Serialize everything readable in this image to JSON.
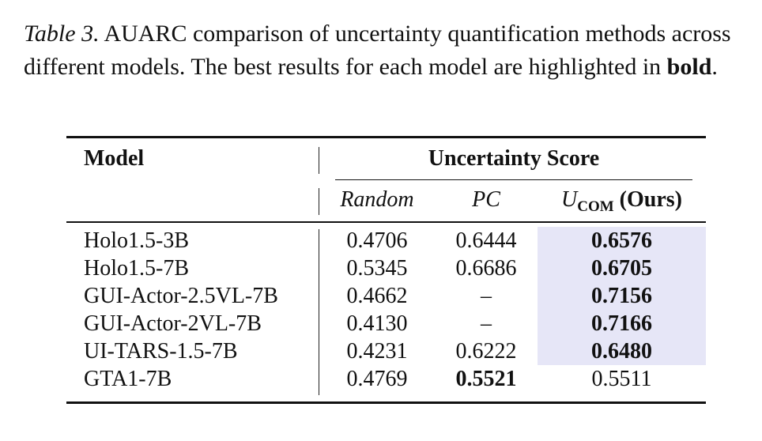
{
  "caption": {
    "label": "Table 3.",
    "text_before_bold": " AUARC comparison of uncertainty quantification methods across different models. The best results for each model are highlighted in ",
    "bold_word": "bold",
    "text_after_bold": "."
  },
  "table": {
    "model_header": "Model",
    "group_header": "Uncertainty Score",
    "columns": {
      "random": "Random",
      "pc": "PC",
      "ucom_letter": "U",
      "ucom_sub": "COM",
      "ucom_suffix": " (Ours)"
    },
    "rows": [
      {
        "model": "Holo1.5-3B",
        "random": "0.4706",
        "pc": "0.6444",
        "ucom": "0.6576"
      },
      {
        "model": "Holo1.5-7B",
        "random": "0.5345",
        "pc": "0.6686",
        "ucom": "0.6705"
      },
      {
        "model": "GUI-Actor-2.5VL-7B",
        "random": "0.4662",
        "pc": "–",
        "ucom": "0.7156"
      },
      {
        "model": "GUI-Actor-2VL-7B",
        "random": "0.4130",
        "pc": "–",
        "ucom": "0.7166"
      },
      {
        "model": "UI-TARS-1.5-7B",
        "random": "0.4231",
        "pc": "0.6222",
        "ucom": "0.6480"
      },
      {
        "model": "GTA1-7B",
        "random": "0.4769",
        "pc": "0.5521",
        "ucom": "0.5511"
      }
    ],
    "best": [
      "ucom",
      "ucom",
      "ucom",
      "ucom",
      "ucom",
      "pc"
    ],
    "highlight_color": "#e6e6f7"
  }
}
